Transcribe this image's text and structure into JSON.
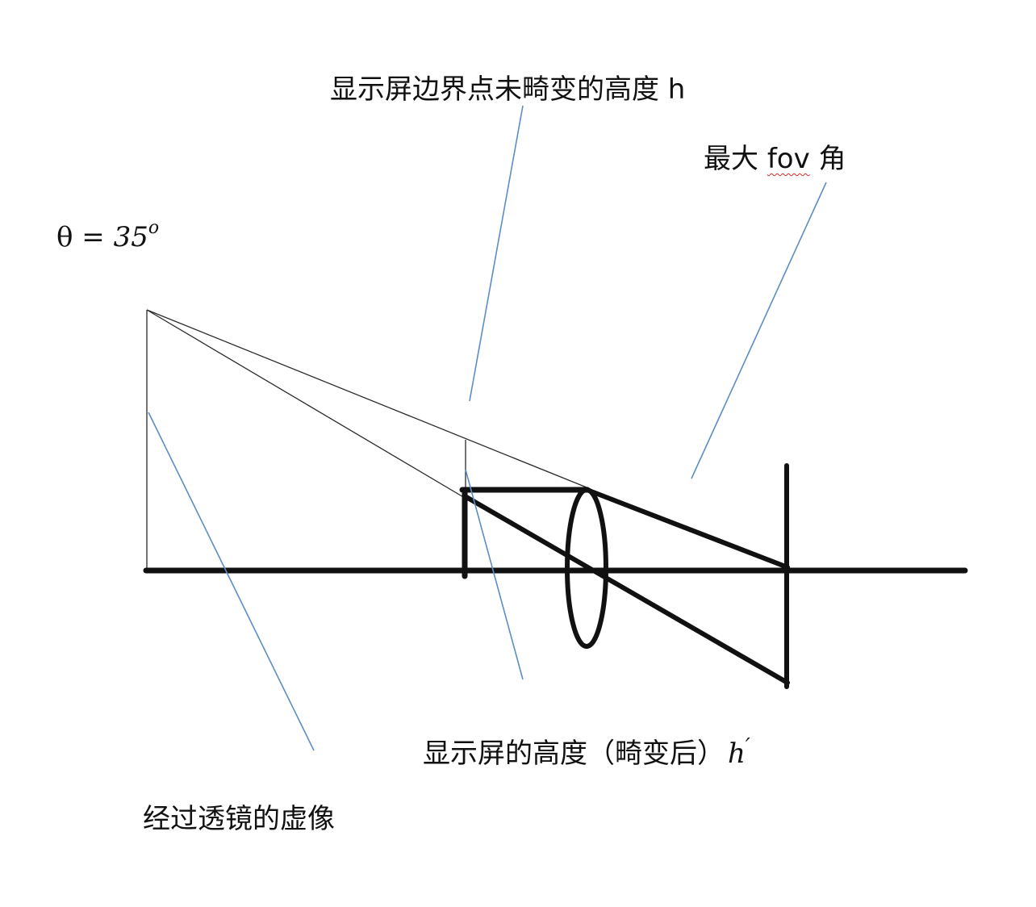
{
  "labels": {
    "undistorted_height": "显示屏边界点未畸变的高度 h",
    "max_fov_prefix": "最大 ",
    "max_fov_word": "fov",
    "max_fov_suffix": " 角",
    "theta_symbol": "θ = ",
    "theta_value": "35",
    "theta_sup": "o",
    "screen_height_text": "显示屏的高度（畸变后）",
    "screen_height_symbol": "h",
    "screen_height_prime": "′",
    "virtual_image": "经过透镜的虚像"
  },
  "colors": {
    "ink": "#111111",
    "thin_ray": "#2a2a2a",
    "leader": "#5b8ec4",
    "spellcheck": "#d62b2b"
  }
}
